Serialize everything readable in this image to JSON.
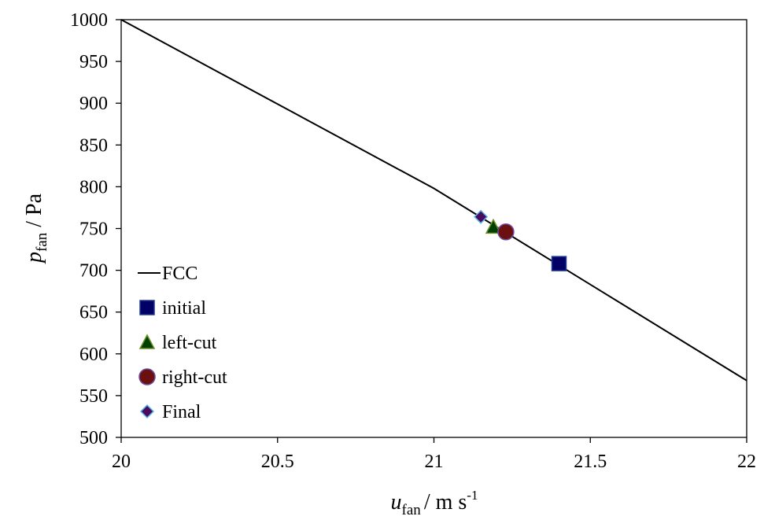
{
  "chart_data": {
    "type": "line",
    "title": "",
    "xlabel": {
      "main": "u",
      "sub": "fan",
      "unit": "/ m s",
      "sup": "-1"
    },
    "ylabel": {
      "main": "p",
      "sub": "fan",
      "unit": " / Pa"
    },
    "xlim": [
      20,
      22
    ],
    "ylim": [
      500,
      1000
    ],
    "xticks": [
      "20",
      "20.5",
      "21",
      "21.5",
      "22"
    ],
    "yticks": [
      "500",
      "550",
      "600",
      "650",
      "700",
      "750",
      "800",
      "850",
      "900",
      "950",
      "1000"
    ],
    "grid": false,
    "legend_position": "left-middle",
    "series": [
      {
        "name": "FCC",
        "kind": "line",
        "color": "#000000",
        "x": [
          20,
          21,
          22
        ],
        "y": [
          1000,
          798,
          568
        ]
      },
      {
        "name": "initial",
        "kind": "square",
        "color": "#000066",
        "edge": "#1f3a93",
        "x": [
          21.4
        ],
        "y": [
          708
        ]
      },
      {
        "name": "left-cut",
        "kind": "triangle",
        "color": "#004000",
        "edge": "#6b8e23",
        "x": [
          21.19
        ],
        "y": [
          752
        ]
      },
      {
        "name": "right-cut",
        "kind": "circle",
        "color": "#6b0f0f",
        "edge": "#6a4c9c",
        "x": [
          21.23
        ],
        "y": [
          746
        ]
      },
      {
        "name": "Final",
        "kind": "diamond",
        "color": "#4b0a5e",
        "edge": "#5ab4e6",
        "x": [
          21.15
        ],
        "y": [
          764
        ]
      }
    ]
  }
}
